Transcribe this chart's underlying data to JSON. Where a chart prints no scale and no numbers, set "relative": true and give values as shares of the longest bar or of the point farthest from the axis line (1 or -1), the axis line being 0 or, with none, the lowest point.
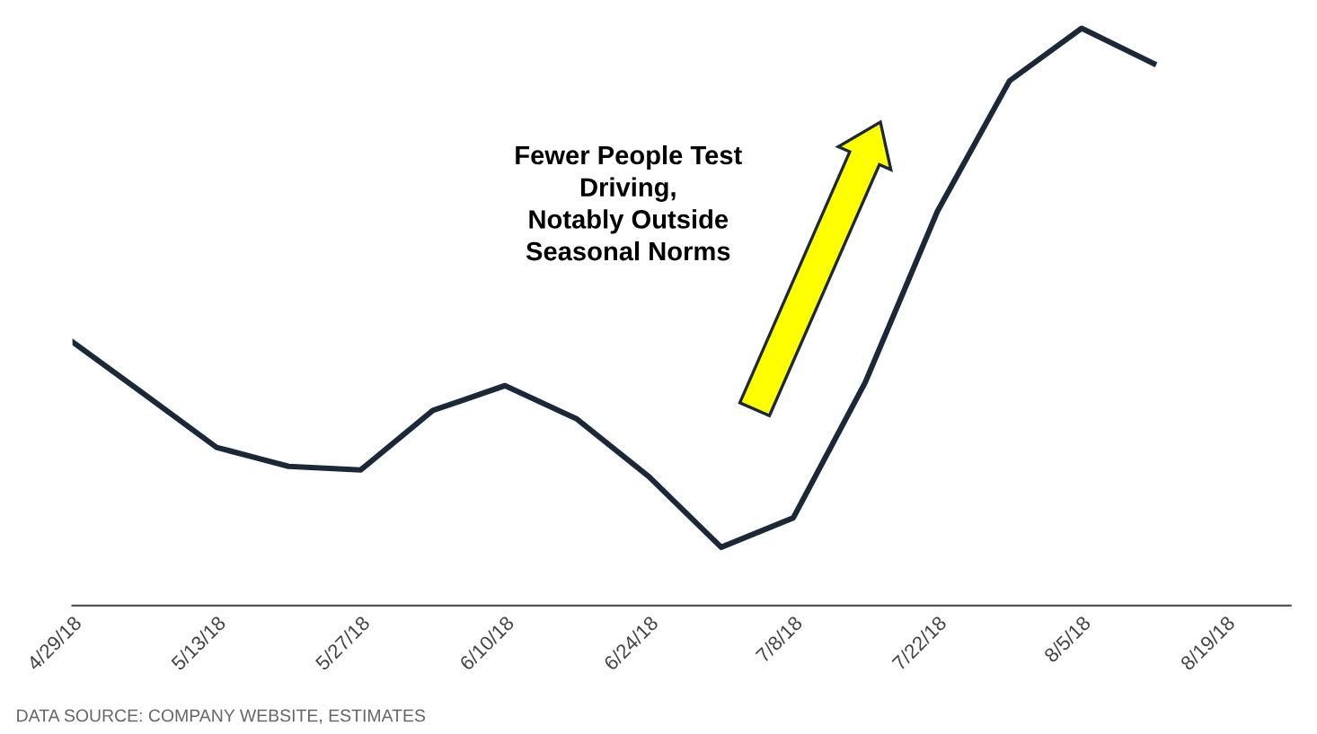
{
  "chart_data": {
    "type": "line",
    "relative": true,
    "categories": [
      "4/29/18",
      null,
      "5/13/18",
      null,
      "5/27/18",
      null,
      "6/10/18",
      null,
      "6/24/18",
      null,
      "7/8/18",
      null,
      "7/22/18",
      null,
      "8/5/18",
      null,
      "8/19/18"
    ],
    "series": [
      {
        "color": "#1b2838",
        "values": [
          0.457,
          0.366,
          0.274,
          0.241,
          0.235,
          0.338,
          0.381,
          0.323,
          0.223,
          0.101,
          0.152,
          0.387,
          0.683,
          0.909,
          1,
          0.939,
          null
        ]
      }
    ],
    "annotations": [
      "Fewer People Test\nDriving,\nNotably Outside\nSeasonal Norms",
      "DATA SOURCE: COMPANY WEBSITE, ESTIMATES"
    ],
    "grid": false,
    "legend": false,
    "marker": "none",
    "line_style": "solid"
  }
}
